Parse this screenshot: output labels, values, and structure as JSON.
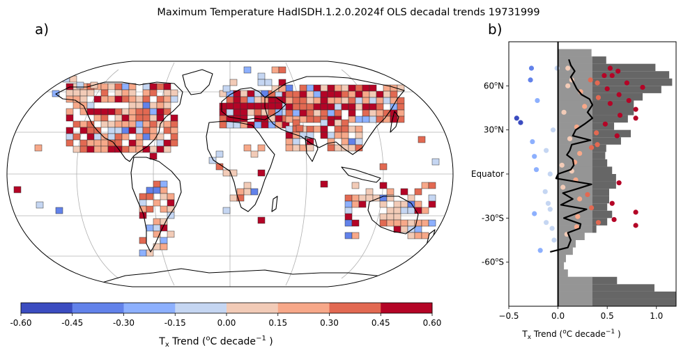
{
  "title": "Maximum Temperature HadISDH.1.2.0.2024f OLS decadal trends 19731999",
  "panel_a_label": "a)",
  "panel_b_label": "b)",
  "colors": {
    "bins": [
      "#3b4cc0",
      "#6282ea",
      "#8db0fe",
      "#c5d6f2",
      "#f2cbb7",
      "#f7a889",
      "#e26952",
      "#b40426"
    ],
    "histogram": "#666666",
    "histogram_light": "#bbbbbb",
    "land_outline": "#000000",
    "grid": "#b0b0b0"
  },
  "colorbar": {
    "ticks": [
      "-0.60",
      "-0.45",
      "-0.30",
      "-0.15",
      "0.00",
      "0.15",
      "0.30",
      "0.45",
      "0.60"
    ],
    "label_main": "T",
    "label_sub": "x",
    "label_mid": " Trend (",
    "label_sup1": "o",
    "label_unit": "C decade",
    "label_sup2": "−1",
    "label_end": " )"
  },
  "chart_data": [
    {
      "type": "heatmap",
      "description": "Map of gridbox decadal trends of maximum temperature, binned by colour scale from -0.60 to 0.60 in steps of 0.15",
      "scale_min": -0.6,
      "scale_max": 0.6,
      "scale_step": 0.15
    },
    {
      "type": "scatter",
      "x_label_main": "T",
      "x_label_sub": "x",
      "x_label_rest": " Trend (",
      "x_label_sup": "o",
      "x_label_unit": "C decade",
      "x_label_sup2": "−1",
      "x_label_end": " )",
      "xlim": [
        -0.5,
        1.2
      ],
      "ylim": [
        -90,
        90
      ],
      "x_ticks": [
        "−0.5",
        "0.0",
        "0.5",
        "1.0"
      ],
      "x_tick_values": [
        -0.5,
        0,
        0.5,
        1.0
      ],
      "y_ticks": [
        "60",
        "30",
        "Equator",
        "-30",
        "-60"
      ],
      "y_tick_values": [
        60,
        30,
        0,
        -30,
        -60
      ],
      "y_tick_suffix_n": "N",
      "y_tick_suffix_s": "S",
      "y_tick_sup": "o",
      "histogram": {
        "lat_center": [
          87.5,
          82.5,
          77.5,
          72.5,
          67.5,
          62.5,
          57.5,
          52.5,
          47.5,
          42.5,
          37.5,
          32.5,
          27.5,
          22.5,
          17.5,
          12.5,
          7.5,
          2.5,
          -2.5,
          -7.5,
          -12.5,
          -17.5,
          -22.5,
          -27.5,
          -32.5,
          -37.5,
          -42.5,
          -47.5,
          -52.5,
          -57.5,
          -62.5,
          -67.5,
          -72.5,
          -77.5,
          -82.5,
          -87.5
        ],
        "value": [
          0,
          0.34,
          0.49,
          0.99,
          1.13,
          1.16,
          1.05,
          0.86,
          0.77,
          0.77,
          0.71,
          0.57,
          0.74,
          0.64,
          0.49,
          0.48,
          0.5,
          0.55,
          0.59,
          0.59,
          0.52,
          0.52,
          0.5,
          0.55,
          0.5,
          0.39,
          0.27,
          0.18,
          0.15,
          0.08,
          0.06,
          0.1,
          0.6,
          0.98,
          1.2,
          1.2
        ]
      },
      "zonal_mean_line": {
        "lat": [
          -53,
          -50,
          -45,
          -40,
          -37,
          -34,
          -30,
          -27,
          -24,
          -21,
          -17,
          -13,
          -10,
          -7,
          -3,
          0,
          3,
          6,
          10,
          13,
          16,
          20,
          23,
          26,
          30,
          34,
          38,
          42,
          47,
          51,
          54,
          58,
          62,
          66,
          70,
          74,
          78
        ],
        "x": [
          -0.08,
          0.1,
          0.13,
          0.1,
          0.22,
          0.23,
          0.06,
          0.18,
          0.29,
          0.03,
          0.15,
          0.05,
          0.2,
          0.34,
          -0.02,
          0.0,
          0.13,
          0.16,
          0.15,
          0.09,
          0.12,
          0.14,
          0.33,
          0.15,
          0.18,
          0.27,
          0.35,
          0.3,
          0.35,
          0.32,
          0.24,
          0.19,
          0.16,
          0.13,
          0.17,
          0.13,
          0.11
        ]
      },
      "points": [
        {
          "lat": 72,
          "x": -0.27,
          "bin": 1
        },
        {
          "lat": 72,
          "x": -0.01,
          "bin": 3
        },
        {
          "lat": 72,
          "x": 0.1,
          "bin": 4
        },
        {
          "lat": 72,
          "x": 0.53,
          "bin": 7
        },
        {
          "lat": 70,
          "x": 0.61,
          "bin": 7
        },
        {
          "lat": 67,
          "x": 0.47,
          "bin": 7
        },
        {
          "lat": 67,
          "x": 0.55,
          "bin": 7
        },
        {
          "lat": 64,
          "x": -0.28,
          "bin": 1
        },
        {
          "lat": 64,
          "x": 0.14,
          "bin": 4
        },
        {
          "lat": 64,
          "x": 0.33,
          "bin": 6
        },
        {
          "lat": 62,
          "x": 0.4,
          "bin": 6
        },
        {
          "lat": 62,
          "x": 0.7,
          "bin": 7
        },
        {
          "lat": 60,
          "x": 0.1,
          "bin": 4
        },
        {
          "lat": 59,
          "x": 0.86,
          "bin": 7
        },
        {
          "lat": 58,
          "x": 0.5,
          "bin": 7
        },
        {
          "lat": 56,
          "x": 0.23,
          "bin": 5
        },
        {
          "lat": 54,
          "x": 0.62,
          "bin": 7
        },
        {
          "lat": 52,
          "x": 0.41,
          "bin": 6
        },
        {
          "lat": 50,
          "x": -0.21,
          "bin": 2
        },
        {
          "lat": 50,
          "x": 0.72,
          "bin": 7
        },
        {
          "lat": 48,
          "x": 0.53,
          "bin": 7
        },
        {
          "lat": 46,
          "x": 0.27,
          "bin": 5
        },
        {
          "lat": 44,
          "x": 0.79,
          "bin": 7
        },
        {
          "lat": 42,
          "x": 0.06,
          "bin": 4
        },
        {
          "lat": 40,
          "x": 0.63,
          "bin": 7
        },
        {
          "lat": 38,
          "x": -0.42,
          "bin": 0
        },
        {
          "lat": 38,
          "x": 0.79,
          "bin": 7
        },
        {
          "lat": 35,
          "x": -0.38,
          "bin": 0
        },
        {
          "lat": 34,
          "x": 0.48,
          "bin": 7
        },
        {
          "lat": 32,
          "x": 0.19,
          "bin": 5
        },
        {
          "lat": 30,
          "x": -0.05,
          "bin": 3
        },
        {
          "lat": 28,
          "x": 0.39,
          "bin": 6
        },
        {
          "lat": 26,
          "x": 0.6,
          "bin": 7
        },
        {
          "lat": 24,
          "x": 0.12,
          "bin": 4
        },
        {
          "lat": 22,
          "x": -0.26,
          "bin": 2
        },
        {
          "lat": 20,
          "x": 0.4,
          "bin": 6
        },
        {
          "lat": 18,
          "x": 0.34,
          "bin": 6
        },
        {
          "lat": 16,
          "x": -0.12,
          "bin": 3
        },
        {
          "lat": 14,
          "x": 0.22,
          "bin": 5
        },
        {
          "lat": 12,
          "x": -0.24,
          "bin": 2
        },
        {
          "lat": 8,
          "x": 0.17,
          "bin": 5
        },
        {
          "lat": 6,
          "x": 0.04,
          "bin": 4
        },
        {
          "lat": 3,
          "x": -0.22,
          "bin": 2
        },
        {
          "lat": 2,
          "x": 0.14,
          "bin": 4
        },
        {
          "lat": 0,
          "x": -0.08,
          "bin": 3
        },
        {
          "lat": -4,
          "x": 0.18,
          "bin": 5
        },
        {
          "lat": -6,
          "x": 0.62,
          "bin": 7
        },
        {
          "lat": -9,
          "x": 0.05,
          "bin": 4
        },
        {
          "lat": -12,
          "x": -0.13,
          "bin": 3
        },
        {
          "lat": -14,
          "x": 0.3,
          "bin": 6
        },
        {
          "lat": -17,
          "x": 0.22,
          "bin": 5
        },
        {
          "lat": -20,
          "x": 0.55,
          "bin": 7
        },
        {
          "lat": -20,
          "x": -0.1,
          "bin": 3
        },
        {
          "lat": -23,
          "x": 0.34,
          "bin": 6
        },
        {
          "lat": -24,
          "x": -0.08,
          "bin": 3
        },
        {
          "lat": -26,
          "x": 0.79,
          "bin": 7
        },
        {
          "lat": -27,
          "x": -0.24,
          "bin": 2
        },
        {
          "lat": -29,
          "x": 0.2,
          "bin": 5
        },
        {
          "lat": -31,
          "x": 0.57,
          "bin": 7
        },
        {
          "lat": -33,
          "x": 0.41,
          "bin": 6
        },
        {
          "lat": -33,
          "x": -0.12,
          "bin": 3
        },
        {
          "lat": -35,
          "x": 0.79,
          "bin": 7
        },
        {
          "lat": -36,
          "x": 0.19,
          "bin": 5
        },
        {
          "lat": -37,
          "x": -0.06,
          "bin": 3
        },
        {
          "lat": -41,
          "x": 0.09,
          "bin": 4
        },
        {
          "lat": -45,
          "x": -0.04,
          "bin": 3
        },
        {
          "lat": -52,
          "x": -0.18,
          "bin": 2
        }
      ]
    }
  ]
}
